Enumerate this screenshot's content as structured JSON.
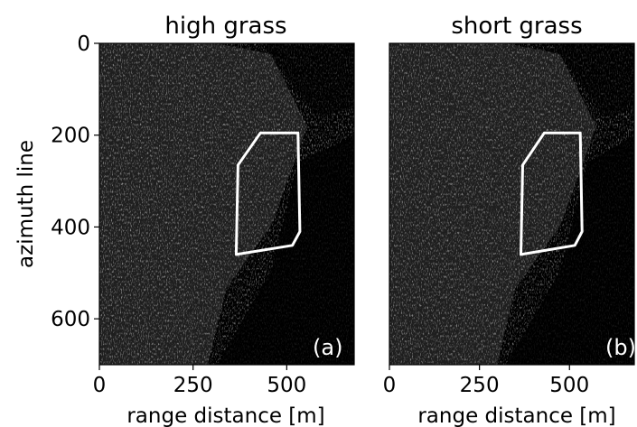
{
  "figure": {
    "panels": [
      {
        "title": "high grass",
        "tag": "(a)",
        "xlabel": "range distance [m]",
        "ylabel": "azimuth line",
        "xticks": [
          "0",
          "250",
          "500"
        ],
        "yticks": [
          "0",
          "200",
          "400",
          "600"
        ]
      },
      {
        "title": "short grass",
        "tag": "(b)",
        "xlabel": "range distance [m]",
        "ylabel": "",
        "xticks": [
          "0",
          "250",
          "500"
        ],
        "yticks": []
      }
    ],
    "xlim": [
      0,
      680
    ],
    "ylim": [
      700,
      0
    ],
    "roi_polygon": [
      [
        430,
        195
      ],
      [
        530,
        195
      ],
      [
        535,
        410
      ],
      [
        515,
        440
      ],
      [
        365,
        460
      ],
      [
        370,
        265
      ]
    ],
    "colors": {
      "image_bg": "#000000",
      "roi_outline": "#ffffff"
    }
  }
}
